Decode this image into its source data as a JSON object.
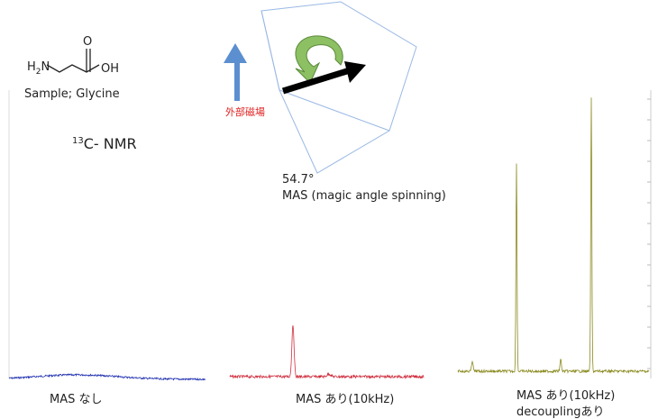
{
  "molecule": {
    "amine": [
      "H",
      "2",
      "N"
    ],
    "carbonyl": "O",
    "hydroxyl": "OH"
  },
  "sample": "Sample;  Glycine",
  "title": [
    "13",
    "C- NMR"
  ],
  "field_label": "外部磁場",
  "angle": "54.7°",
  "mas_label": "MAS (magic angle spinning)",
  "spectra": [
    {
      "label": [
        "MAS なし"
      ]
    },
    {
      "label": [
        "MAS あり(10kHz)"
      ]
    },
    {
      "label": [
        "MAS あり(10kHz)",
        "decouplingあり"
      ]
    }
  ]
}
